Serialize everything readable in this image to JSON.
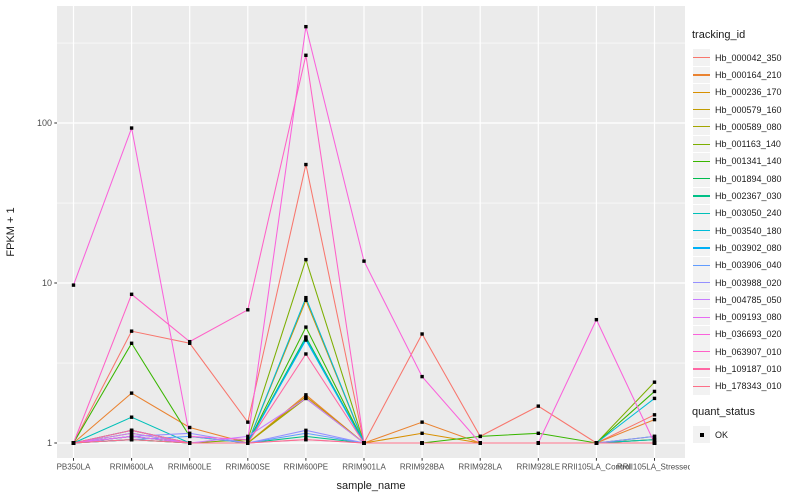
{
  "chart_data": {
    "type": "line",
    "title": "",
    "xlabel": "sample_name",
    "ylabel": "FPKM + 1",
    "y_scale": "log10",
    "y_ticks": [
      1,
      10,
      100
    ],
    "y_minor_ticks": [
      3.16,
      31.6,
      316
    ],
    "ylim": [
      0.93,
      540
    ],
    "grid": "on",
    "legend_position": "right",
    "point_color": "#000000",
    "categories": [
      "PB350LA",
      "RRIM600LA",
      "RRIM600LE",
      "RRIM600SE",
      "RRIM600PE",
      "RRIM901LA",
      "RRIM928BA",
      "RRIM928LA",
      "RRIM928LE",
      "RRII105LA_Control",
      "RRII105LA_Stressed"
    ],
    "series": [
      {
        "name": "Hb_000042_350",
        "color": "#F8766D",
        "values": [
          1,
          5.0,
          4.2,
          1.35,
          55,
          1,
          4.8,
          1.1,
          1.7,
          1,
          1.5
        ]
      },
      {
        "name": "Hb_000164_210",
        "color": "#EA8331",
        "values": [
          1,
          2.05,
          1.25,
          1,
          2.0,
          1,
          1.35,
          1,
          1,
          1,
          1.4
        ]
      },
      {
        "name": "Hb_000236_170",
        "color": "#D89000",
        "values": [
          1,
          1.2,
          1,
          1,
          7.8,
          1,
          1.15,
          1,
          1,
          1,
          1.05
        ]
      },
      {
        "name": "Hb_000579_160",
        "color": "#C09B00",
        "values": [
          1,
          1.15,
          1,
          1,
          1.95,
          1,
          1,
          1,
          1,
          1,
          1
        ]
      },
      {
        "name": "Hb_000589_080",
        "color": "#A3A500",
        "values": [
          1,
          1.1,
          1,
          1,
          1.9,
          1,
          1,
          1,
          1,
          1,
          1.05
        ]
      },
      {
        "name": "Hb_001163_140",
        "color": "#7CAE00",
        "values": [
          1,
          1.1,
          1,
          1.05,
          14,
          1,
          1,
          1,
          1,
          1,
          2.4
        ]
      },
      {
        "name": "Hb_001341_140",
        "color": "#39B600",
        "values": [
          1,
          4.2,
          1.1,
          1,
          5.3,
          1,
          1,
          1.1,
          1.15,
          1,
          2.1
        ]
      },
      {
        "name": "Hb_001894_080",
        "color": "#00BB4E",
        "values": [
          1,
          1.05,
          1,
          1,
          4.6,
          1,
          1,
          1,
          1,
          1,
          1.1
        ]
      },
      {
        "name": "Hb_002367_030",
        "color": "#00C087",
        "values": [
          1,
          1.05,
          1,
          1,
          1.1,
          1,
          1,
          1,
          1,
          1,
          1
        ]
      },
      {
        "name": "Hb_003050_240",
        "color": "#00C0B8",
        "values": [
          1,
          1.45,
          1,
          1,
          4.5,
          1,
          1,
          1,
          1,
          1,
          1.05
        ]
      },
      {
        "name": "Hb_003540_180",
        "color": "#00BCD8",
        "values": [
          1,
          1.2,
          1,
          1,
          8.1,
          1,
          1,
          1,
          1,
          1,
          1.9
        ]
      },
      {
        "name": "Hb_003902_080",
        "color": "#00B0F6",
        "values": [
          1,
          1.1,
          1,
          1,
          4.4,
          1,
          1,
          1,
          1,
          1,
          1
        ]
      },
      {
        "name": "Hb_003906_040",
        "color": "#619CFF",
        "values": [
          1,
          1.05,
          1.1,
          1,
          1.15,
          1,
          1,
          1,
          1,
          1,
          1
        ]
      },
      {
        "name": "Hb_003988_020",
        "color": "#9590FF",
        "values": [
          1,
          1.1,
          1.15,
          1,
          1.2,
          1,
          1,
          1,
          1,
          1,
          1.1
        ]
      },
      {
        "name": "Hb_004785_050",
        "color": "#C77CFF",
        "values": [
          1,
          1.15,
          1,
          1.1,
          1.9,
          1,
          1,
          1,
          1,
          1,
          1
        ]
      },
      {
        "name": "Hb_009193_080",
        "color": "#E76BF3",
        "values": [
          1,
          1.1,
          1,
          1,
          1.05,
          1,
          1,
          1,
          1,
          1,
          1
        ]
      },
      {
        "name": "Hb_036693_020",
        "color": "#FA62DB",
        "values": [
          9.7,
          93,
          1.1,
          1.05,
          400,
          13.7,
          2.6,
          1,
          1,
          5.9,
          1
        ]
      },
      {
        "name": "Hb_063907_010",
        "color": "#FF61C7",
        "values": [
          1,
          8.5,
          4.3,
          6.8,
          265,
          1,
          1,
          1,
          1,
          1,
          1
        ]
      },
      {
        "name": "Hb_109187_010",
        "color": "#FF67A4",
        "values": [
          1,
          1.2,
          1,
          1,
          3.6,
          1,
          1,
          1,
          1,
          1,
          1
        ]
      },
      {
        "name": "Hb_178343_010",
        "color": "#FD6F88",
        "values": [
          1,
          1.05,
          1,
          1,
          1.05,
          1,
          1,
          1,
          1,
          1,
          1
        ]
      }
    ]
  },
  "legend": {
    "tracking_title": "tracking_id",
    "quant_title": "quant_status",
    "quant_items": [
      "OK"
    ]
  },
  "theme": {
    "page_bg": "#FFFFFF",
    "panel_bg": "#EBEBEB",
    "grid_color": "#FFFFFF",
    "key_bg": "#F2F2F2",
    "tick_color": "#333333",
    "tick_label_color": "#4D4D4D",
    "axis_title_color": "#1A1A1A"
  }
}
